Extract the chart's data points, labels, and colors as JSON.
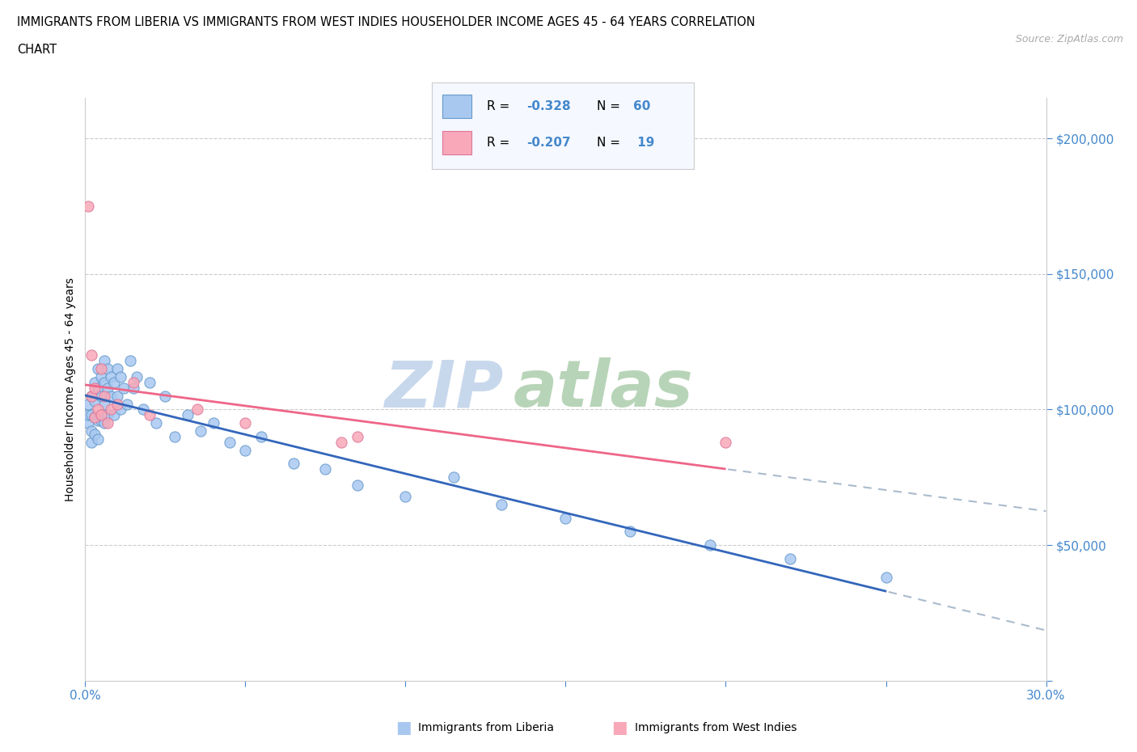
{
  "title_line1": "IMMIGRANTS FROM LIBERIA VS IMMIGRANTS FROM WEST INDIES HOUSEHOLDER INCOME AGES 45 - 64 YEARS CORRELATION",
  "title_line2": "CHART",
  "source_text": "Source: ZipAtlas.com",
  "ylabel": "Householder Income Ages 45 - 64 years",
  "xlim": [
    0.0,
    0.3
  ],
  "ylim": [
    0,
    215000
  ],
  "x_ticks": [
    0.0,
    0.05,
    0.1,
    0.15,
    0.2,
    0.25,
    0.3
  ],
  "x_tick_labels": [
    "0.0%",
    "",
    "",
    "",
    "",
    "",
    "30.0%"
  ],
  "y_ticks": [
    0,
    50000,
    100000,
    150000,
    200000
  ],
  "y_tick_labels": [
    "",
    "$50,000",
    "$100,000",
    "$150,000",
    "$200,000"
  ],
  "liberia_color": "#a8c8f0",
  "liberia_edge_color": "#6699cc",
  "west_indies_color": "#f8a8b8",
  "west_indies_edge_color": "#dd7799",
  "liberia_line_color": "#3366bb",
  "west_indies_line_color": "#ee6688",
  "dashed_line_color": "#aabbcc",
  "R_liberia": -0.328,
  "N_liberia": 60,
  "R_west_indies": -0.207,
  "N_west_indies": 19,
  "background_color": "#ffffff",
  "grid_color": "#cccccc",
  "tick_color": "#4488cc",
  "legend_bg": "#f5f8ff",
  "liberia_scatter_x": [
    0.001,
    0.001,
    0.001,
    0.002,
    0.002,
    0.002,
    0.002,
    0.003,
    0.003,
    0.003,
    0.003,
    0.004,
    0.004,
    0.004,
    0.004,
    0.005,
    0.005,
    0.005,
    0.006,
    0.006,
    0.006,
    0.006,
    0.007,
    0.007,
    0.007,
    0.008,
    0.008,
    0.009,
    0.009,
    0.01,
    0.01,
    0.011,
    0.011,
    0.012,
    0.013,
    0.014,
    0.015,
    0.016,
    0.018,
    0.02,
    0.022,
    0.025,
    0.028,
    0.032,
    0.036,
    0.04,
    0.045,
    0.05,
    0.055,
    0.065,
    0.075,
    0.085,
    0.1,
    0.115,
    0.13,
    0.15,
    0.17,
    0.195,
    0.22,
    0.25
  ],
  "liberia_scatter_y": [
    95000,
    98000,
    102000,
    105000,
    98000,
    92000,
    88000,
    110000,
    103000,
    97000,
    91000,
    115000,
    108000,
    96000,
    89000,
    112000,
    105000,
    96000,
    118000,
    110000,
    102000,
    95000,
    115000,
    108000,
    98000,
    112000,
    105000,
    110000,
    98000,
    115000,
    105000,
    112000,
    100000,
    108000,
    102000,
    118000,
    108000,
    112000,
    100000,
    110000,
    95000,
    105000,
    90000,
    98000,
    92000,
    95000,
    88000,
    85000,
    90000,
    80000,
    78000,
    72000,
    68000,
    75000,
    65000,
    60000,
    55000,
    50000,
    45000,
    38000
  ],
  "west_indies_scatter_x": [
    0.001,
    0.002,
    0.002,
    0.003,
    0.003,
    0.004,
    0.005,
    0.005,
    0.006,
    0.007,
    0.008,
    0.01,
    0.015,
    0.02,
    0.035,
    0.05,
    0.08,
    0.085,
    0.2
  ],
  "west_indies_scatter_y": [
    175000,
    120000,
    105000,
    108000,
    97000,
    100000,
    115000,
    98000,
    105000,
    95000,
    100000,
    102000,
    110000,
    98000,
    100000,
    95000,
    88000,
    90000,
    88000
  ]
}
